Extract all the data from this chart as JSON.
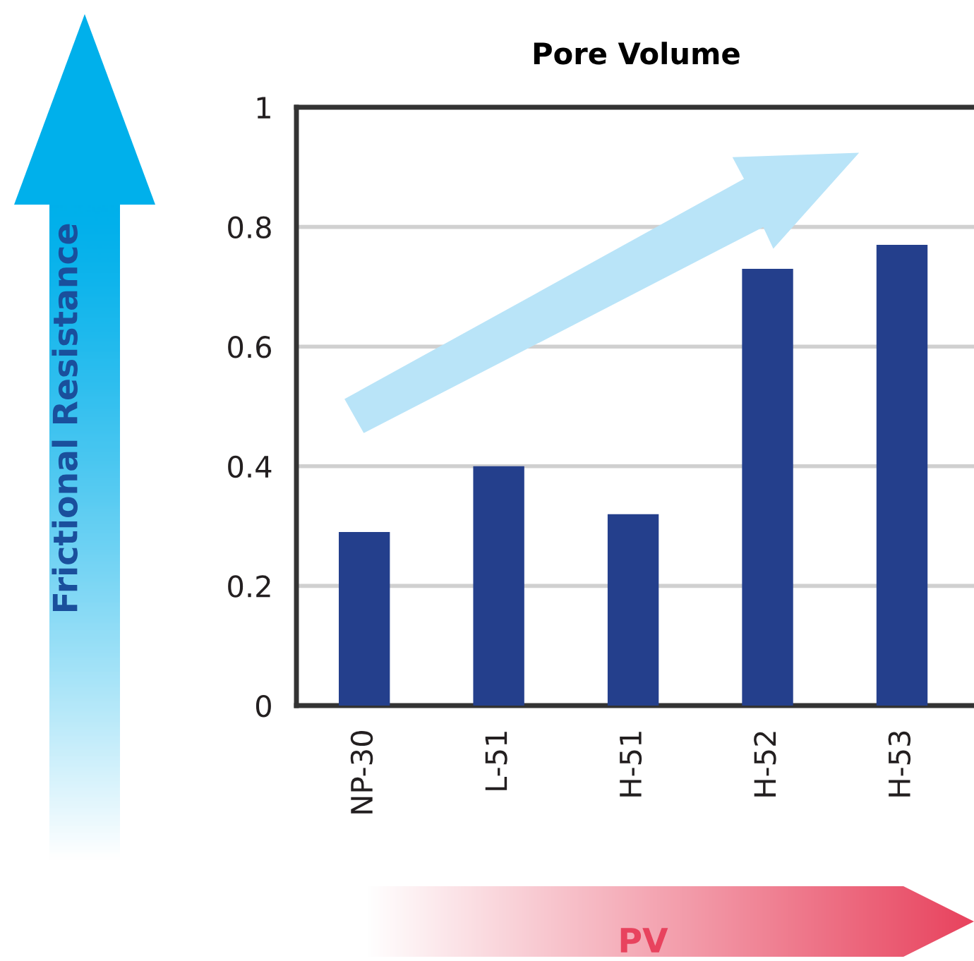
{
  "chart_data": {
    "type": "bar",
    "title": "Pore Volume",
    "xlabel": "PV",
    "ylabel": "Frictional Resistance",
    "categories": [
      "NP-30",
      "L-51",
      "H-51",
      "H-52",
      "H-53"
    ],
    "values": [
      0.29,
      0.4,
      0.32,
      0.73,
      0.77
    ],
    "color": "#243f8c",
    "ylim": [
      0,
      1
    ],
    "yticks": [
      0,
      0.2,
      0.4,
      0.6,
      0.8,
      1
    ],
    "grid": "y"
  }
}
